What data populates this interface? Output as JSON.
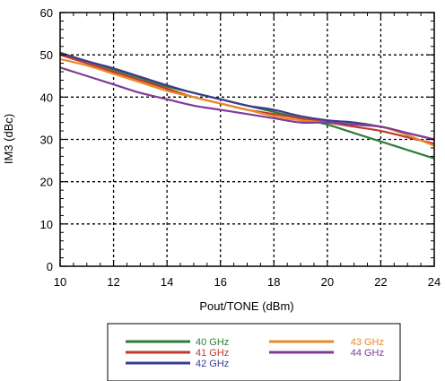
{
  "chart_data": {
    "type": "line",
    "title": "",
    "xlabel": "Pout/TONE (dBm)",
    "ylabel": "IM3 (dBc)",
    "xlim": [
      10,
      24
    ],
    "ylim": [
      0,
      60
    ],
    "xticks": [
      10,
      12,
      14,
      16,
      18,
      20,
      22,
      24
    ],
    "yticks": [
      0,
      10,
      20,
      30,
      40,
      50,
      60
    ],
    "grid": true,
    "legend_placement": "bottom",
    "series": [
      {
        "name": "40 GHz",
        "color": "#2e7d3a",
        "x": [
          10,
          11,
          12,
          13,
          14,
          15,
          16,
          17,
          18,
          19,
          20,
          21,
          22,
          23,
          24
        ],
        "y": [
          50.5,
          48.5,
          46.5,
          44.5,
          42.5,
          41.0,
          39.5,
          38.0,
          36.5,
          35.0,
          33.5,
          31.5,
          29.5,
          27.5,
          25.5
        ]
      },
      {
        "name": "41 GHz",
        "color": "#c0392b",
        "x": [
          10,
          11,
          12,
          13,
          14,
          15,
          16,
          17,
          18,
          19,
          20,
          21,
          22,
          23,
          24
        ],
        "y": [
          50.0,
          48.0,
          46.0,
          44.0,
          42.0,
          40.0,
          38.5,
          37.0,
          36.0,
          35.0,
          34.0,
          33.0,
          32.0,
          30.5,
          29.0
        ]
      },
      {
        "name": "42 GHz",
        "color": "#3b3b8f",
        "x": [
          10,
          11,
          12,
          13,
          14,
          15,
          16,
          17,
          18,
          19,
          20,
          21,
          22,
          23,
          24
        ],
        "y": [
          50.5,
          48.5,
          46.8,
          44.8,
          42.8,
          41.0,
          39.5,
          38.0,
          37.0,
          35.5,
          34.5,
          34.0,
          33.0,
          31.5,
          30.0
        ]
      },
      {
        "name": "43 GHz",
        "color": "#e8892b",
        "x": [
          10,
          11,
          12,
          13,
          14,
          15,
          16,
          17,
          18,
          19,
          20,
          21,
          22,
          23,
          24
        ],
        "y": [
          49.0,
          47.5,
          45.5,
          43.5,
          41.5,
          40.0,
          38.5,
          37.0,
          35.5,
          34.5,
          34.0,
          33.5,
          33.0,
          31.0,
          28.5
        ]
      },
      {
        "name": "44 GHz",
        "color": "#7d3c98",
        "x": [
          10,
          11,
          12,
          13,
          14,
          15,
          16,
          17,
          18,
          19,
          20,
          21,
          22,
          23,
          24
        ],
        "y": [
          47.0,
          45.0,
          43.0,
          41.0,
          39.5,
          38.0,
          37.0,
          36.0,
          35.0,
          34.0,
          34.0,
          33.5,
          33.0,
          31.5,
          30.0
        ]
      }
    ]
  }
}
